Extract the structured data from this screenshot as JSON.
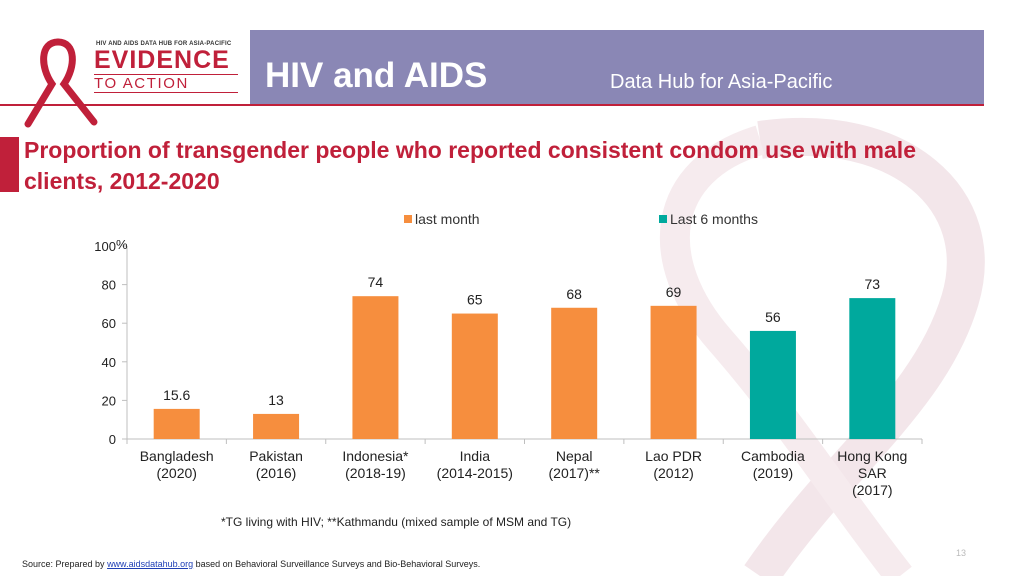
{
  "header": {
    "logo_small": "HIV AND AIDS DATA HUB FOR ASIA-PACIFIC",
    "logo_line1": "EVIDENCE",
    "logo_line2": "TO ACTION",
    "title": "HIV and AIDS",
    "subtitle": "Data Hub for Asia-Pacific"
  },
  "colors": {
    "header_bg": "#8a87b5",
    "accent_red": "#c0203a",
    "orange": "#f68e3e",
    "teal": "#00a99d"
  },
  "chart_data": {
    "type": "bar",
    "title": "Proportion of transgender people who reported consistent condom use with male clients, 2012-2020",
    "ylabel": "%",
    "ylim": [
      0,
      100
    ],
    "yticks": [
      "0",
      "20",
      "40",
      "60",
      "80",
      "100"
    ],
    "legend": [
      "last month",
      "Last 6 months"
    ],
    "categories": [
      [
        "Bangladesh",
        "(2020)"
      ],
      [
        "Pakistan",
        "(2016)"
      ],
      [
        "Indonesia*",
        "(2018-19)"
      ],
      [
        "India",
        "(2014-2015)"
      ],
      [
        "Nepal",
        "(2017)**"
      ],
      [
        "Lao PDR",
        "(2012)"
      ],
      [
        "Cambodia",
        "(2019)"
      ],
      [
        "Hong Kong",
        "SAR",
        "(2017)"
      ]
    ],
    "values": [
      15.6,
      13,
      74,
      65,
      68,
      69,
      56,
      73
    ],
    "labels": [
      "15.6",
      "13",
      "74",
      "65",
      "68",
      "69",
      "56",
      "73"
    ],
    "series_index": [
      0,
      0,
      0,
      0,
      0,
      0,
      1,
      1
    ]
  },
  "footnote": "*TG living with HIV; **Kathmandu (mixed sample of MSM and TG)",
  "source": {
    "prefix": "Source: Prepared by ",
    "link": "www.aidsdatahub.org",
    "suffix": " based on Behavioral Surveillance Surveys and Bio-Behavioral Surveys."
  },
  "page_number": "13"
}
